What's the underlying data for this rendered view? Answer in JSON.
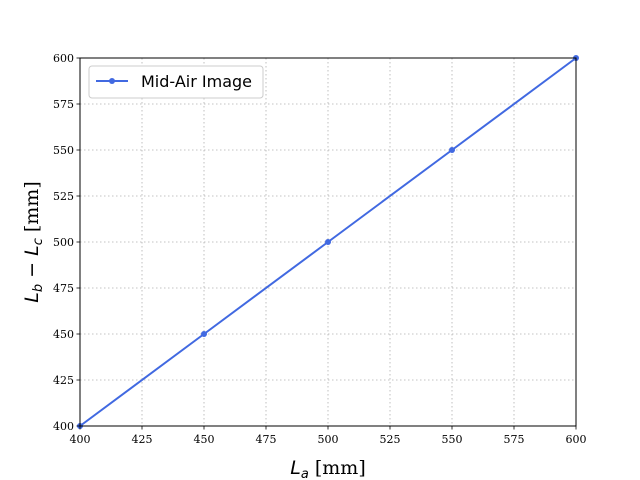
{
  "chart_data": {
    "type": "line",
    "x": [
      400,
      450,
      500,
      550,
      600
    ],
    "series": [
      {
        "name": "Mid-Air Image",
        "values": [
          400,
          450,
          500,
          550,
          600
        ],
        "color": "#4169e1",
        "marker": "circle"
      }
    ],
    "xlabel_main": "L",
    "xlabel_sub": "a",
    "xlabel_unit": " [mm]",
    "ylabel_main1": "L",
    "ylabel_sub1": "b",
    "ylabel_minus": " − ",
    "ylabel_main2": "L",
    "ylabel_sub2": "c",
    "ylabel_unit": " [mm]",
    "xlim": [
      400,
      600
    ],
    "ylim": [
      400,
      600
    ],
    "xticks": [
      400,
      425,
      450,
      475,
      500,
      525,
      550,
      575,
      600
    ],
    "yticks": [
      400,
      425,
      450,
      475,
      500,
      525,
      550,
      575,
      600
    ],
    "grid": true,
    "legend_position": "top-left"
  }
}
